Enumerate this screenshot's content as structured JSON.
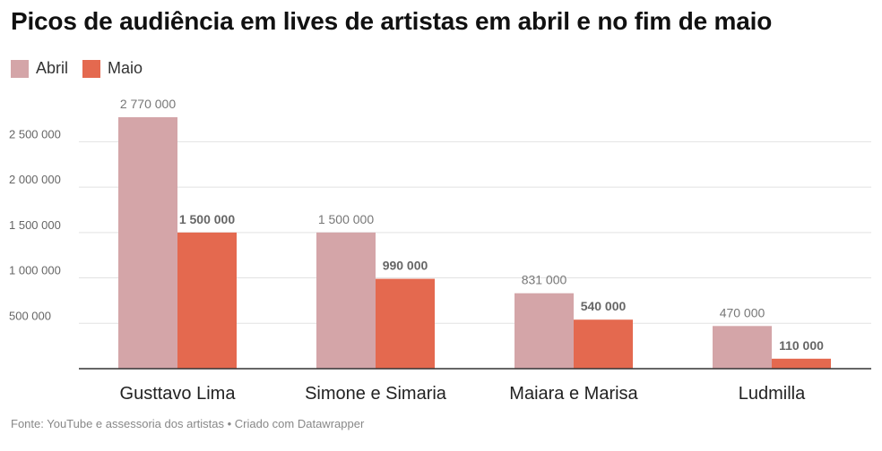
{
  "title": "Picos de audiência em lives de artistas em abril e no fim de maio",
  "source": "Fonte: YouTube e assessoria dos artistas • Criado com Datawrapper",
  "chart_data": {
    "type": "bar",
    "categories": [
      "Gusttavo Lima",
      "Simone e Simaria",
      "Maiara e Marisa",
      "Ludmilla"
    ],
    "series": [
      {
        "name": "Abril",
        "color": "#d4a5a8",
        "values": [
          2770000,
          1500000,
          831000,
          470000
        ],
        "labels": [
          "2 770 000",
          "1 500 000",
          "831 000",
          "470 000"
        ]
      },
      {
        "name": "Maio",
        "color": "#e4694f",
        "values": [
          1500000,
          990000,
          540000,
          110000
        ],
        "labels": [
          "1 500 000",
          "990 000",
          "540 000",
          "110 000"
        ]
      }
    ],
    "yticks": [
      500000,
      1000000,
      1500000,
      2000000,
      2500000
    ],
    "ytick_labels": [
      "500 000",
      "1 000 000",
      "1 500 000",
      "2 000 000",
      "2 500 000"
    ],
    "ylim": [
      0,
      2770000
    ],
    "grid": true,
    "legend": "top-left"
  }
}
